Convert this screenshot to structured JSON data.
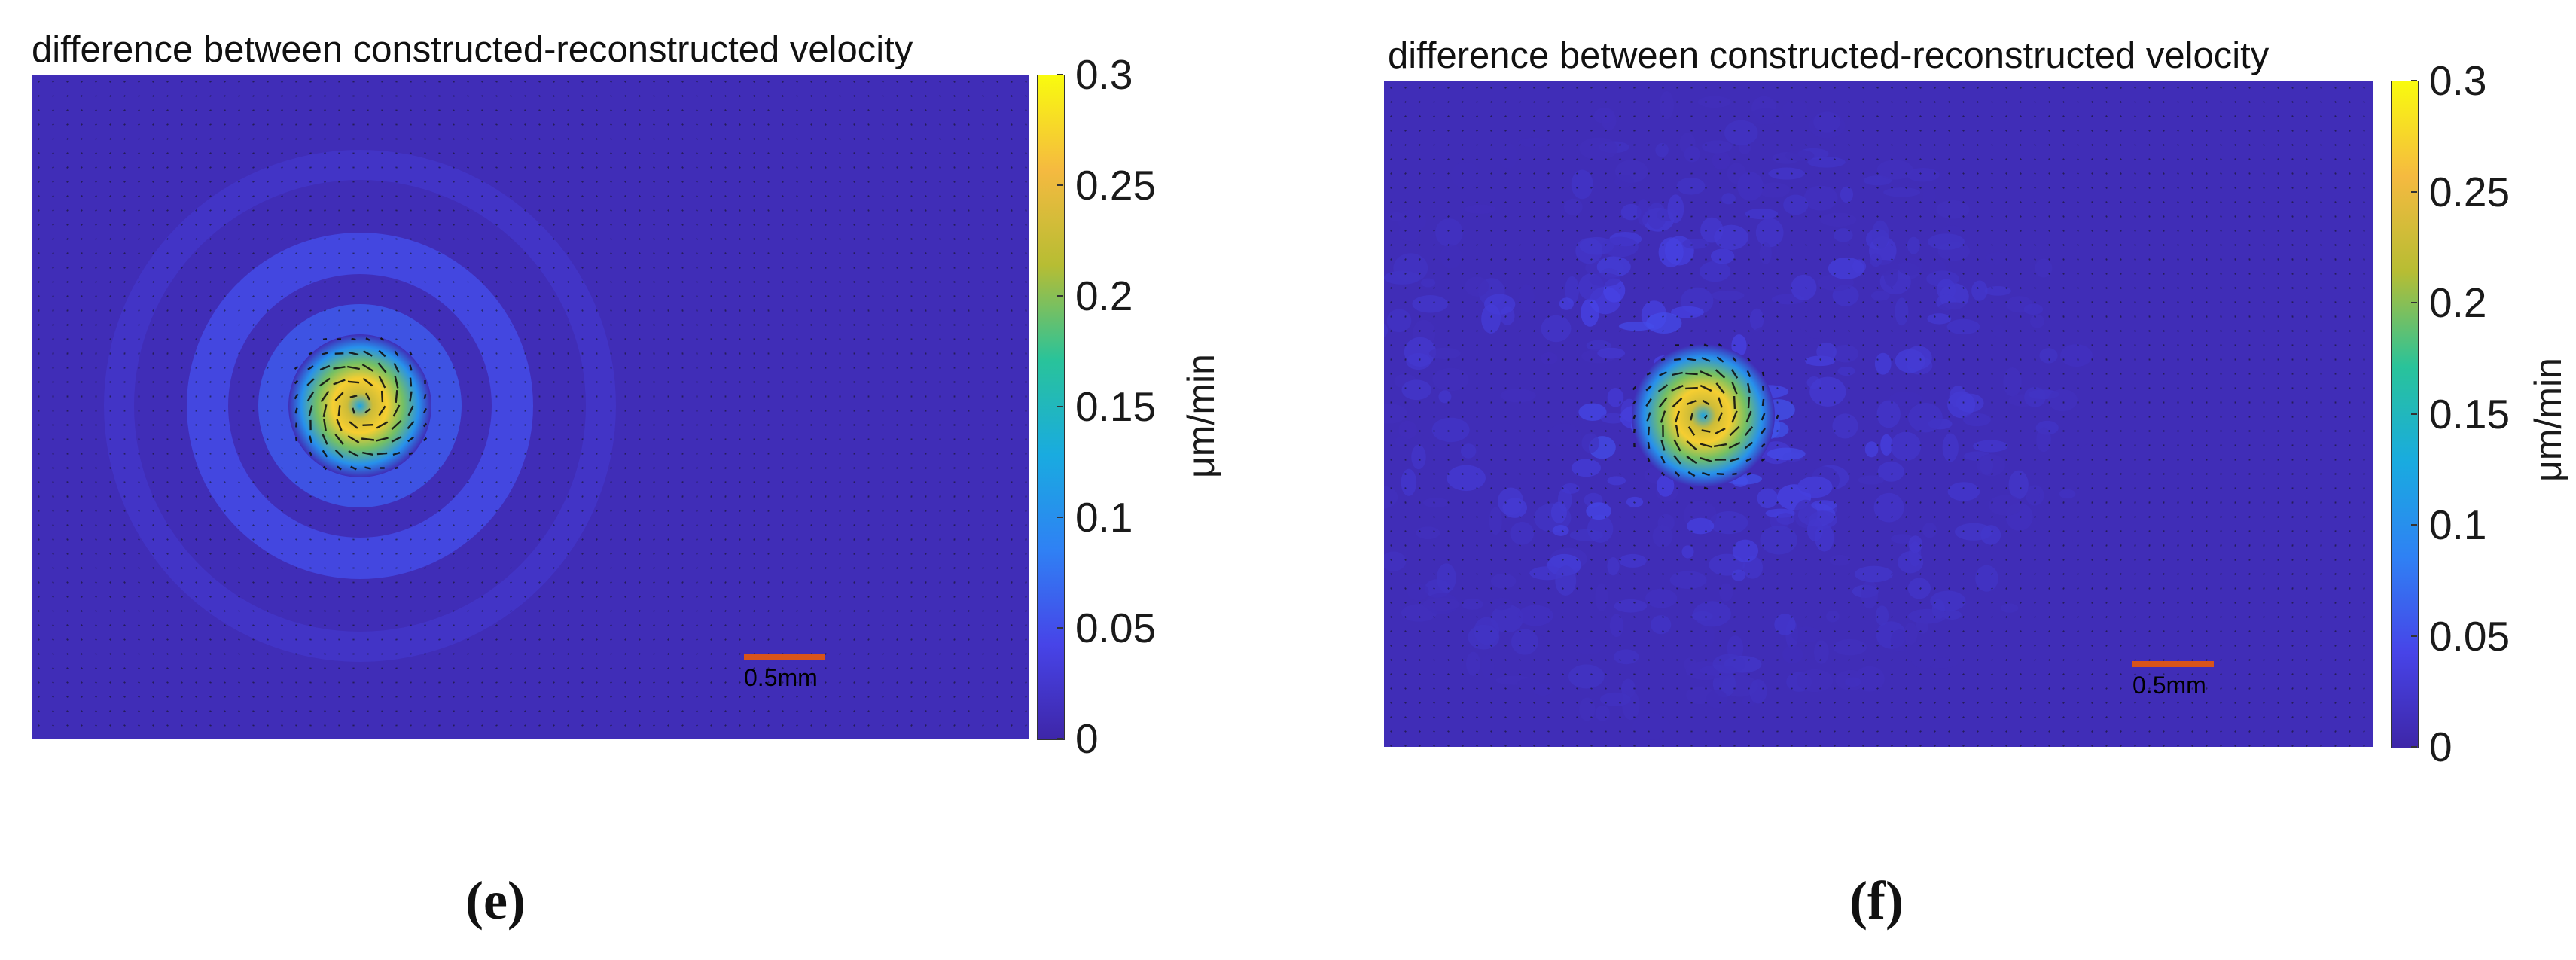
{
  "chart_data": [
    {
      "type": "heatmap",
      "panel": "e",
      "title": "difference between constructed-reconstructed velocity",
      "colorbar": {
        "label": "μm/min",
        "ticks": [
          "0",
          "0.05",
          "0.1",
          "0.15",
          "0.2",
          "0.25",
          "0.3"
        ],
        "range": [
          0,
          0.3
        ],
        "colormap": "parula"
      },
      "scale_bar": {
        "label": "0.5mm",
        "color": "#d9541a"
      },
      "features": {
        "vortex_peak_value": 0.27,
        "vortex_location": "left-center",
        "ring_values": [
          0.05,
          0.03
        ],
        "background_value": 0.01
      },
      "caption": "(e)"
    },
    {
      "type": "heatmap",
      "panel": "f",
      "title": "difference between constructed-reconstructed velocity",
      "colorbar": {
        "label": "μm/min",
        "ticks": [
          "0",
          "0.05",
          "0.1",
          "0.15",
          "0.2",
          "0.25",
          "0.3"
        ],
        "range": [
          0,
          0.3
        ],
        "colormap": "parula"
      },
      "scale_bar": {
        "label": "0.5mm",
        "color": "#d9541a"
      },
      "features": {
        "vortex_peak_value": 0.27,
        "vortex_location": "left-center",
        "noise_level": 0.04,
        "background_value": 0.01
      },
      "caption": "(f)"
    }
  ],
  "colors": {
    "background_field": "#3e26a8",
    "colormap_stops": [
      "#3e26a8",
      "#4744e8",
      "#2f81f4",
      "#19abe0",
      "#29c39a",
      "#b7bd33",
      "#f5ba40",
      "#f9fb0e"
    ]
  }
}
